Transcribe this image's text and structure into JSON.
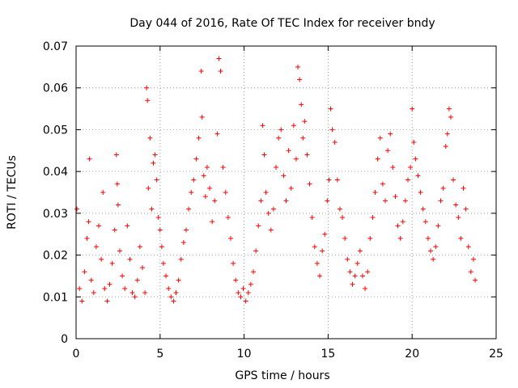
{
  "chart_data": {
    "type": "scatter",
    "title": "Day 044 of 2016, Rate Of TEC Index for receiver bndy",
    "xlabel": "GPS time / hours",
    "ylabel": "ROTI / TECUs",
    "xlim": [
      0,
      25
    ],
    "ylim": [
      0,
      0.07
    ],
    "x_ticks": [
      0,
      5,
      10,
      15,
      20,
      25
    ],
    "x_tick_labels": [
      "0",
      "5",
      "10",
      "15",
      "20",
      "25"
    ],
    "y_ticks": [
      0,
      0.01,
      0.02,
      0.03,
      0.04,
      0.05,
      0.06,
      0.07
    ],
    "y_tick_labels": [
      "0",
      "0.01",
      "0.02",
      "0.03",
      "0.04",
      "0.05",
      "0.06",
      "0.07"
    ],
    "grid": true,
    "marker": "+",
    "color": "#ff0000",
    "series": [
      {
        "name": "ROTI",
        "x": [
          0.05,
          0.2,
          0.35,
          0.5,
          0.65,
          0.75,
          0.8,
          0.9,
          1.05,
          1.2,
          1.35,
          1.5,
          1.6,
          1.7,
          1.85,
          2.0,
          2.15,
          2.3,
          2.4,
          2.45,
          2.5,
          2.6,
          2.75,
          2.9,
          3.05,
          3.2,
          3.35,
          3.5,
          3.65,
          3.8,
          3.95,
          4.1,
          4.2,
          4.25,
          4.3,
          4.4,
          4.5,
          4.6,
          4.7,
          4.8,
          4.9,
          5.0,
          5.1,
          5.2,
          5.35,
          5.5,
          5.65,
          5.8,
          5.95,
          6.1,
          6.25,
          6.4,
          6.55,
          6.7,
          6.85,
          7.0,
          7.15,
          7.3,
          7.45,
          7.5,
          7.6,
          7.7,
          7.8,
          7.95,
          8.1,
          8.25,
          8.4,
          8.5,
          8.6,
          8.75,
          8.9,
          9.05,
          9.2,
          9.35,
          9.5,
          9.65,
          9.8,
          9.95,
          10.1,
          10.25,
          10.4,
          10.55,
          10.7,
          10.85,
          11.0,
          11.1,
          11.2,
          11.3,
          11.45,
          11.6,
          11.75,
          11.9,
          12.05,
          12.2,
          12.35,
          12.5,
          12.65,
          12.8,
          12.95,
          13.1,
          13.2,
          13.3,
          13.4,
          13.5,
          13.6,
          13.75,
          13.9,
          14.05,
          14.2,
          14.35,
          14.5,
          14.65,
          14.8,
          14.95,
          15.05,
          15.15,
          15.25,
          15.4,
          15.55,
          15.7,
          15.85,
          16.0,
          16.15,
          16.3,
          16.45,
          16.6,
          16.75,
          16.9,
          17.05,
          17.2,
          17.35,
          17.5,
          17.65,
          17.8,
          17.95,
          18.1,
          18.25,
          18.4,
          18.55,
          18.7,
          18.85,
          19.0,
          19.15,
          19.3,
          19.45,
          19.6,
          19.75,
          19.9,
          20.0,
          20.1,
          20.2,
          20.35,
          20.5,
          20.65,
          20.8,
          20.95,
          21.1,
          21.25,
          21.4,
          21.55,
          21.7,
          21.85,
          22.0,
          22.1,
          22.2,
          22.3,
          22.45,
          22.6,
          22.75,
          22.9,
          23.05,
          23.2,
          23.35,
          23.5,
          23.65,
          23.75
        ],
        "y": [
          0.031,
          0.012,
          0.009,
          0.016,
          0.024,
          0.028,
          0.043,
          0.014,
          0.011,
          0.022,
          0.027,
          0.019,
          0.035,
          0.012,
          0.009,
          0.013,
          0.018,
          0.026,
          0.044,
          0.037,
          0.032,
          0.021,
          0.015,
          0.012,
          0.027,
          0.019,
          0.011,
          0.01,
          0.014,
          0.022,
          0.017,
          0.011,
          0.06,
          0.057,
          0.036,
          0.048,
          0.031,
          0.042,
          0.044,
          0.038,
          0.029,
          0.026,
          0.022,
          0.018,
          0.015,
          0.012,
          0.01,
          0.009,
          0.011,
          0.014,
          0.019,
          0.023,
          0.026,
          0.031,
          0.035,
          0.038,
          0.043,
          0.048,
          0.064,
          0.053,
          0.039,
          0.034,
          0.041,
          0.036,
          0.028,
          0.033,
          0.049,
          0.067,
          0.064,
          0.041,
          0.035,
          0.029,
          0.024,
          0.018,
          0.014,
          0.011,
          0.01,
          0.012,
          0.009,
          0.011,
          0.013,
          0.016,
          0.021,
          0.027,
          0.033,
          0.051,
          0.044,
          0.035,
          0.03,
          0.026,
          0.031,
          0.041,
          0.048,
          0.05,
          0.039,
          0.033,
          0.045,
          0.036,
          0.051,
          0.043,
          0.065,
          0.062,
          0.056,
          0.048,
          0.052,
          0.044,
          0.037,
          0.029,
          0.022,
          0.018,
          0.015,
          0.021,
          0.025,
          0.033,
          0.038,
          0.055,
          0.05,
          0.047,
          0.038,
          0.031,
          0.029,
          0.024,
          0.019,
          0.016,
          0.013,
          0.015,
          0.018,
          0.021,
          0.015,
          0.012,
          0.016,
          0.024,
          0.029,
          0.035,
          0.043,
          0.048,
          0.037,
          0.033,
          0.045,
          0.049,
          0.041,
          0.034,
          0.027,
          0.024,
          0.028,
          0.033,
          0.038,
          0.041,
          0.055,
          0.047,
          0.043,
          0.039,
          0.035,
          0.031,
          0.028,
          0.024,
          0.021,
          0.019,
          0.022,
          0.027,
          0.033,
          0.036,
          0.046,
          0.049,
          0.055,
          0.053,
          0.038,
          0.032,
          0.029,
          0.024,
          0.036,
          0.031,
          0.022,
          0.016,
          0.019,
          0.014
        ]
      }
    ]
  }
}
